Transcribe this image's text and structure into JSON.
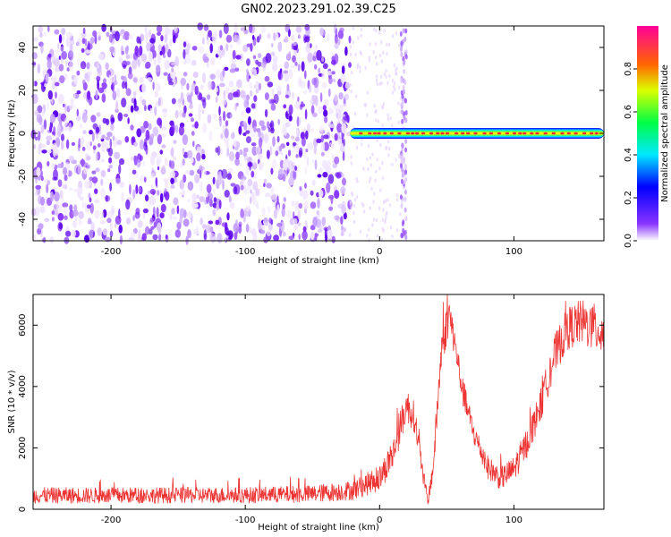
{
  "title": "GN02.2023.291.02.39.C25",
  "chart_data": [
    {
      "type": "heatmap",
      "xlabel": "Height of straight line (km)",
      "ylabel": "Frequency (Hz)",
      "xlim": [
        -258,
        167
      ],
      "ylim": [
        -50,
        50
      ],
      "x_ticks": [
        -200,
        -100,
        0,
        100
      ],
      "y_ticks": [
        -40,
        -20,
        0,
        20,
        40
      ],
      "colorbar": {
        "label": "Normalized spectral amplitude",
        "range": [
          0,
          1
        ],
        "ticks": [
          "0.0",
          "0.2",
          "0.4",
          "0.6",
          "0.8"
        ],
        "tick_values": [
          0,
          0.2,
          0.4,
          0.6,
          0.8
        ]
      },
      "features": [
        {
          "name": "noise",
          "x_range": [
            -258,
            -22
          ],
          "y_range": [
            -50,
            50
          ]
        },
        {
          "name": "sparse",
          "x_range": [
            -22,
            167
          ],
          "y_range": [
            -50,
            50
          ]
        },
        {
          "name": "vertical streak",
          "x_range": [
            16,
            20
          ],
          "y_range": [
            -50,
            50
          ]
        },
        {
          "name": "signal band",
          "x_range": [
            -22,
            167
          ],
          "y_range": [
            -2,
            2
          ]
        }
      ]
    },
    {
      "type": "line",
      "xlabel": "Height of straight line (km)",
      "ylabel": "SNR (10 * v/v)",
      "xlim": [
        -258,
        167
      ],
      "ylim": [
        0,
        7000
      ],
      "x_ticks": [
        -200,
        -100,
        0,
        100
      ],
      "y_ticks": [
        0,
        2000,
        4000,
        6000
      ],
      "color": "#ee3333",
      "x": [
        -258,
        -200,
        -100,
        -50,
        -20,
        0,
        10,
        20,
        26,
        32,
        36,
        40,
        46,
        52,
        56,
        62,
        70,
        80,
        90,
        100,
        110,
        120,
        130,
        140,
        150,
        160,
        167
      ],
      "mean": [
        450,
        450,
        460,
        500,
        620,
        1000,
        1800,
        3400,
        3000,
        1200,
        250,
        1400,
        5200,
        6400,
        5400,
        3800,
        2500,
        1400,
        1000,
        1300,
        2200,
        3400,
        5000,
        5900,
        6100,
        5900,
        5800
      ],
      "noise": [
        260,
        260,
        260,
        280,
        320,
        420,
        520,
        560,
        500,
        350,
        150,
        400,
        700,
        600,
        500,
        450,
        400,
        380,
        380,
        420,
        500,
        550,
        650,
        700,
        750,
        800,
        800
      ]
    }
  ]
}
